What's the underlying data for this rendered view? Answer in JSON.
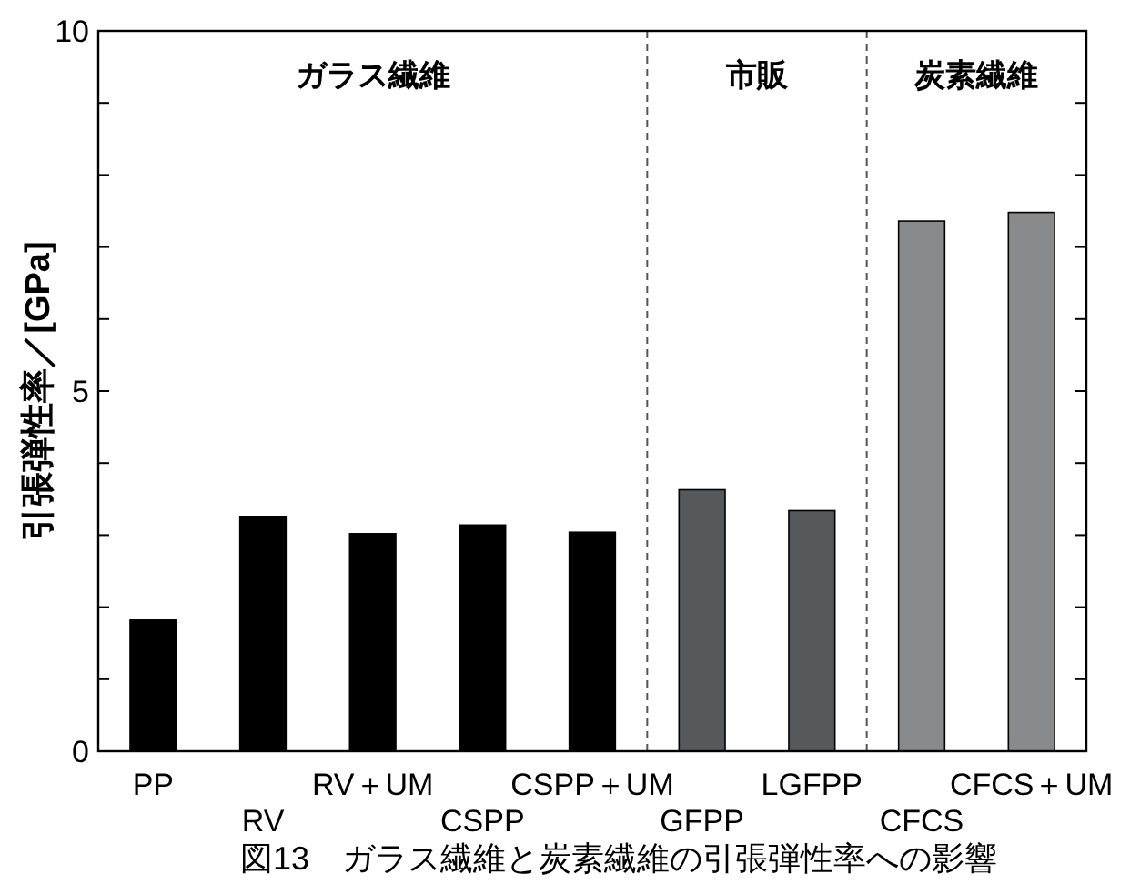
{
  "chart_data": {
    "type": "bar",
    "categories": [
      "PP",
      "RV",
      "RV＋UM",
      "CSPP",
      "CSPP＋UM",
      "GFPP",
      "LGFPP",
      "CFCS",
      "CFCS＋UM"
    ],
    "values": [
      1.82,
      3.26,
      3.02,
      3.14,
      3.04,
      3.63,
      3.34,
      7.36,
      7.48
    ],
    "colors": [
      "#000000",
      "#000000",
      "#000000",
      "#000000",
      "#000000",
      "#55595c",
      "#55595c",
      "#888a8c",
      "#888a8c"
    ],
    "ylabel": "引張弾性率／[GPa]",
    "ylim": [
      0,
      10
    ],
    "yticks": [
      0,
      {
        "value": 1,
        "label": null
      },
      {
        "value": 2,
        "label": null
      },
      {
        "value": 3,
        "label": null
      },
      {
        "value": 4,
        "label": null
      },
      5,
      {
        "value": 6,
        "label": null
      },
      {
        "value": 7,
        "label": null
      },
      {
        "value": 8,
        "label": null
      },
      {
        "value": 9,
        "label": null
      },
      10
    ],
    "annotations": [
      "ガラス繊維",
      "市販",
      "炭素繊維",
      "図13　ガラス繊維と炭素繊維の引張弾性率への影響"
    ],
    "grid": false
  }
}
